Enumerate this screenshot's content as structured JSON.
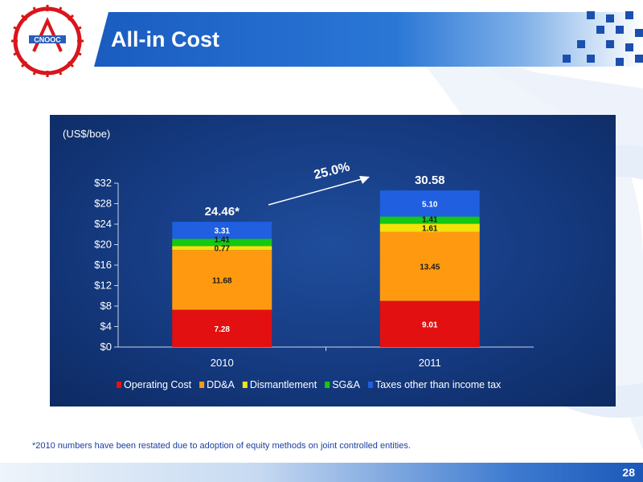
{
  "header": {
    "title": "All-in Cost"
  },
  "chart_data": {
    "type": "bar",
    "stacked": true,
    "unit_label": "(US$/boe)",
    "categories": [
      "2010",
      "2011"
    ],
    "series": [
      {
        "name": "Operating Cost",
        "color": "#e21010",
        "values": [
          7.28,
          9.01
        ],
        "labels": [
          "7.28",
          "9.01"
        ],
        "label_color": "#ffffff"
      },
      {
        "name": "DD&A",
        "color": "#ff9a10",
        "values": [
          11.68,
          13.45
        ],
        "labels": [
          "11.68",
          "13.45"
        ],
        "label_color": "#1a1a1a"
      },
      {
        "name": "Dismantlement",
        "color": "#f4e30a",
        "values": [
          0.77,
          1.61
        ],
        "labels": [
          "0.77",
          "1.61"
        ],
        "label_color": "#1a1a1a"
      },
      {
        "name": "SG&A",
        "color": "#14c814",
        "values": [
          1.41,
          1.41
        ],
        "labels": [
          "1.41",
          "1.41"
        ],
        "label_color": "#1a1a1a"
      },
      {
        "name": "Taxes other than income tax",
        "color": "#1f5fe0",
        "values": [
          3.31,
          5.1
        ],
        "labels": [
          "3.31",
          "5.10"
        ],
        "label_color": "#ffffff"
      }
    ],
    "totals": [
      "24.46*",
      "30.58"
    ],
    "growth_label": "25.0%",
    "y_ticks": [
      "$0",
      "$4",
      "$8",
      "$12",
      "$16",
      "$20",
      "$24",
      "$28",
      "$32"
    ],
    "ylim": [
      0,
      32
    ],
    "legend_position": "bottom"
  },
  "footnote": "*2010 numbers have been restated  due to adoption of equity methods on  joint controlled entities.",
  "page_number": "28"
}
